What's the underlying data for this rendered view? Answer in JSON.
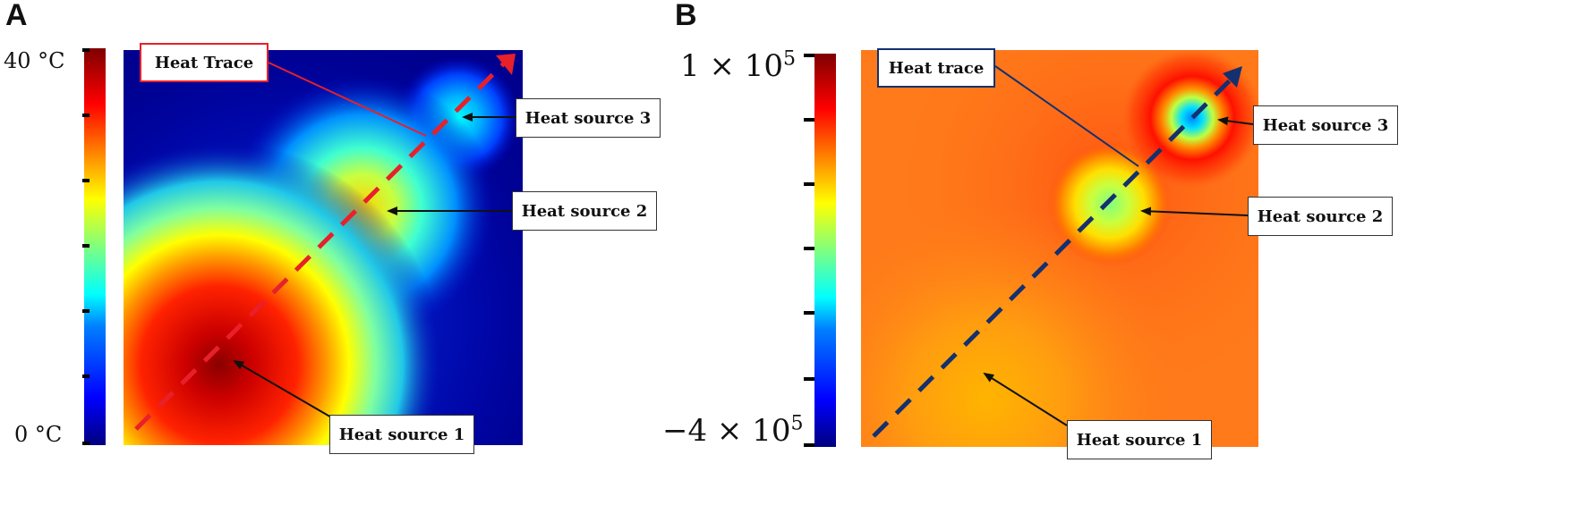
{
  "panel_a": {
    "label": "A",
    "colorbar": {
      "max_label": "40 °C",
      "min_label": "0 °C"
    },
    "trace_label": "Heat Trace",
    "sources": [
      "Heat source 1",
      "Heat source 2",
      "Heat source 3"
    ],
    "colors": {
      "trace": "#e8202a",
      "background": "#00008c"
    }
  },
  "panel_b": {
    "label": "B",
    "colorbar": {
      "max_label_base": "1 × 10",
      "max_label_exp": "5",
      "min_label_base": "−4 × 10",
      "min_label_exp": "5"
    },
    "trace_label": "Heat trace",
    "sources": [
      "Heat source 1",
      "Heat source 2",
      "Heat source 3"
    ],
    "colors": {
      "trace": "#14306e",
      "background": "#ff7a1a"
    }
  }
}
